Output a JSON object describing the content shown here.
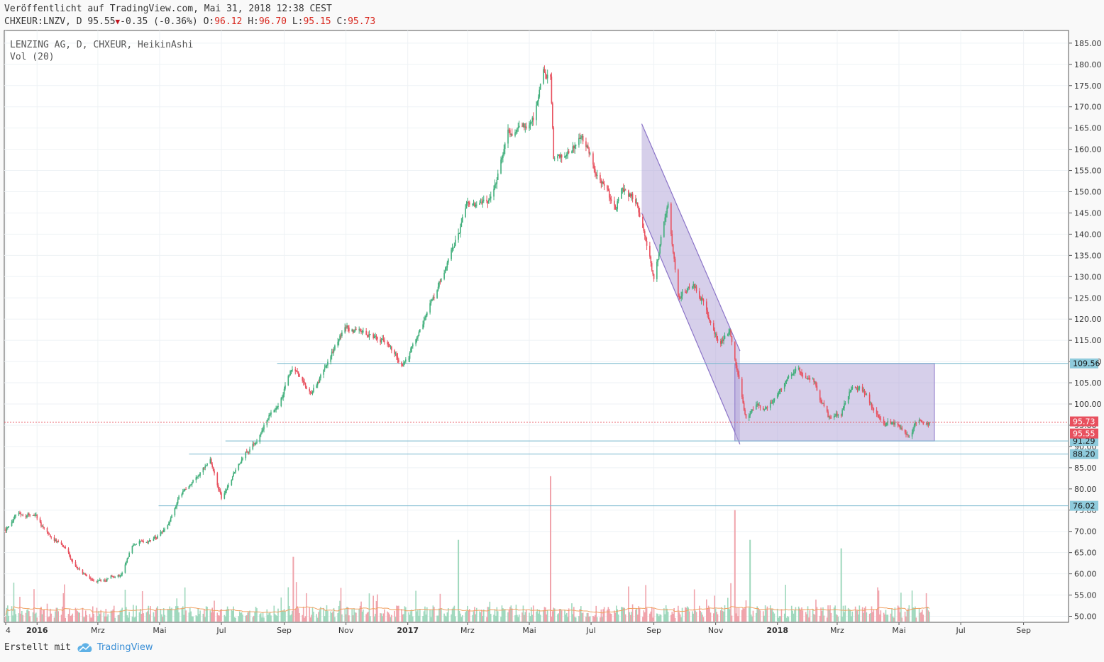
{
  "header": {
    "published": "Veröffentlicht auf TradingView.com, Mai 31, 2018 12:38 CEST",
    "symbol": "CHXEUR:LNZV, D",
    "price": "95.55",
    "change": "-0.35 (-0.36%)",
    "o_label": "O:",
    "o": "96.12",
    "h_label": "H:",
    "h": "96.70",
    "l_label": "L:",
    "l": "95.15",
    "c_label": "C:",
    "c": "95.73"
  },
  "legend": {
    "series": "LENZING AG, D, CHXEUR, HeikinAshi",
    "volume": "Vol (20)"
  },
  "footer": {
    "created_with": "Erstellt mit",
    "brand": "TradingView"
  },
  "colors": {
    "up": "#3fae7a",
    "down": "#e8505e",
    "vol_up": "#9fd8bd",
    "vol_down": "#f0a3ab",
    "hline": "#77b7ce",
    "channel_fill": "#b5a8d8",
    "channel_stroke": "#8b74c8",
    "current_price": "#e8505e",
    "vol_ma": "#f0a060"
  },
  "chart_data": {
    "type": "candlestick",
    "style": "HeikinAshi",
    "ylim": [
      48,
      187
    ],
    "y_ticks": [
      50,
      55,
      60,
      65,
      70,
      75,
      80,
      85,
      90,
      95,
      100,
      105,
      110,
      115,
      120,
      125,
      130,
      135,
      140,
      145,
      150,
      155,
      160,
      165,
      170,
      175,
      180,
      185
    ],
    "x_range": [
      "2015-12-01",
      "2018-09-30"
    ],
    "x_ticks": [
      {
        "label": "4",
        "date": "2015-12-01",
        "bold": false
      },
      {
        "label": "2016",
        "date": "2016-01-01",
        "bold": true
      },
      {
        "label": "Mrz",
        "date": "2016-03-01",
        "bold": false
      },
      {
        "label": "Mai",
        "date": "2016-05-01",
        "bold": false
      },
      {
        "label": "Jul",
        "date": "2016-07-01",
        "bold": false
      },
      {
        "label": "Sep",
        "date": "2016-09-01",
        "bold": false
      },
      {
        "label": "Nov",
        "date": "2016-11-01",
        "bold": false
      },
      {
        "label": "2017",
        "date": "2017-01-01",
        "bold": true
      },
      {
        "label": "Mrz",
        "date": "2017-03-01",
        "bold": false
      },
      {
        "label": "Mai",
        "date": "2017-05-01",
        "bold": false
      },
      {
        "label": "Jul",
        "date": "2017-07-01",
        "bold": false
      },
      {
        "label": "Sep",
        "date": "2017-09-01",
        "bold": false
      },
      {
        "label": "Nov",
        "date": "2017-11-01",
        "bold": false
      },
      {
        "label": "2018",
        "date": "2018-01-01",
        "bold": true
      },
      {
        "label": "Mrz",
        "date": "2018-03-01",
        "bold": false
      },
      {
        "label": "Mai",
        "date": "2018-05-01",
        "bold": false
      },
      {
        "label": "Jul",
        "date": "2018-07-01",
        "bold": false
      },
      {
        "label": "Sep",
        "date": "2018-09-01",
        "bold": false
      }
    ],
    "price_path": [
      [
        "2015-12-01",
        70.5
      ],
      [
        "2015-12-12",
        74.5
      ],
      [
        "2015-12-31",
        73.5
      ],
      [
        "2016-01-10",
        69.5
      ],
      [
        "2016-01-25",
        67
      ],
      [
        "2016-02-05",
        63
      ],
      [
        "2016-02-20",
        59
      ],
      [
        "2016-02-28",
        57.5
      ],
      [
        "2016-03-15",
        59.5
      ],
      [
        "2016-03-25",
        60
      ],
      [
        "2016-04-05",
        67
      ],
      [
        "2016-04-20",
        68
      ],
      [
        "2016-04-28",
        68.5
      ],
      [
        "2016-05-10",
        71
      ],
      [
        "2016-05-20",
        78
      ],
      [
        "2016-06-05",
        83
      ],
      [
        "2016-06-20",
        86.5
      ],
      [
        "2016-07-01",
        78
      ],
      [
        "2016-07-10",
        82
      ],
      [
        "2016-07-25",
        88
      ],
      [
        "2016-08-10",
        94
      ],
      [
        "2016-08-25",
        100
      ],
      [
        "2016-09-10",
        108.5
      ],
      [
        "2016-09-25",
        102
      ],
      [
        "2016-10-05",
        105
      ],
      [
        "2016-10-20",
        113
      ],
      [
        "2016-11-01",
        118
      ],
      [
        "2016-11-10",
        117
      ],
      [
        "2016-11-25",
        116
      ],
      [
        "2016-12-10",
        115
      ],
      [
        "2016-12-25",
        110
      ],
      [
        "2017-01-01",
        111
      ],
      [
        "2017-01-20",
        120
      ],
      [
        "2017-02-01",
        128
      ],
      [
        "2017-02-10",
        133
      ],
      [
        "2017-02-20",
        140
      ],
      [
        "2017-03-01",
        148
      ],
      [
        "2017-03-20",
        147
      ],
      [
        "2017-04-01",
        155
      ],
      [
        "2017-04-10",
        163
      ],
      [
        "2017-04-25",
        165
      ],
      [
        "2017-05-05",
        168
      ],
      [
        "2017-05-15",
        178
      ],
      [
        "2017-05-22",
        176
      ],
      [
        "2017-05-25",
        157
      ],
      [
        "2017-06-10",
        159
      ],
      [
        "2017-06-20",
        164
      ],
      [
        "2017-07-01",
        158
      ],
      [
        "2017-07-15",
        150
      ],
      [
        "2017-07-25",
        146
      ],
      [
        "2017-08-01",
        152
      ],
      [
        "2017-08-15",
        147
      ],
      [
        "2017-08-25",
        138
      ],
      [
        "2017-09-01",
        130
      ],
      [
        "2017-09-15",
        147
      ],
      [
        "2017-09-25",
        125
      ],
      [
        "2017-10-10",
        128
      ],
      [
        "2017-10-20",
        124
      ],
      [
        "2017-10-30",
        118
      ],
      [
        "2017-11-05",
        114
      ],
      [
        "2017-11-15",
        117
      ],
      [
        "2017-11-25",
        105
      ],
      [
        "2017-12-01",
        97
      ],
      [
        "2017-12-10",
        100
      ],
      [
        "2017-12-20",
        98
      ],
      [
        "2018-01-05",
        104
      ],
      [
        "2018-01-20",
        107.5
      ],
      [
        "2018-02-05",
        106
      ],
      [
        "2018-02-20",
        97
      ],
      [
        "2018-03-05",
        98
      ],
      [
        "2018-03-15",
        104
      ],
      [
        "2018-03-25",
        103.5
      ],
      [
        "2018-04-05",
        99
      ],
      [
        "2018-04-15",
        96
      ],
      [
        "2018-05-01",
        95
      ],
      [
        "2018-05-10",
        92.5
      ],
      [
        "2018-05-20",
        96
      ],
      [
        "2018-05-31",
        95.5
      ]
    ],
    "volume_spikes": [
      {
        "date": "2016-09-10",
        "value": 64,
        "dir": "down"
      },
      {
        "date": "2017-02-20",
        "value": 68,
        "dir": "up"
      },
      {
        "date": "2017-05-22",
        "value": 83,
        "dir": "down"
      },
      {
        "date": "2017-11-20",
        "value": 75,
        "dir": "down"
      },
      {
        "date": "2017-12-05",
        "value": 68,
        "dir": "up"
      },
      {
        "date": "2018-03-05",
        "value": 66,
        "dir": "up"
      }
    ],
    "horizontal_lines": [
      {
        "value": 109.56,
        "label": "109.56",
        "from": "2016-08-25"
      },
      {
        "value": 91.29,
        "label": "91.29",
        "from": "2016-07-05"
      },
      {
        "value": 88.2,
        "label": "88.20",
        "from": "2016-05-30"
      },
      {
        "value": 76.02,
        "label": "76.02",
        "from": "2016-04-30"
      }
    ],
    "price_labels": [
      {
        "value": 95.73,
        "label": "95.73",
        "kind": "last"
      },
      {
        "value": 95.55,
        "label": "95.55",
        "kind": "price"
      }
    ],
    "current_price_line": 95.73,
    "down_channel": {
      "top": [
        [
          "2017-08-20",
          166
        ],
        [
          "2017-11-25",
          112.5
        ]
      ],
      "bottom": [
        [
          "2017-08-20",
          145
        ],
        [
          "2017-11-25",
          90.5
        ]
      ]
    },
    "range_box": {
      "from": "2017-11-20",
      "to": "2018-06-05",
      "top": 109.56,
      "bottom": 91.29
    }
  }
}
